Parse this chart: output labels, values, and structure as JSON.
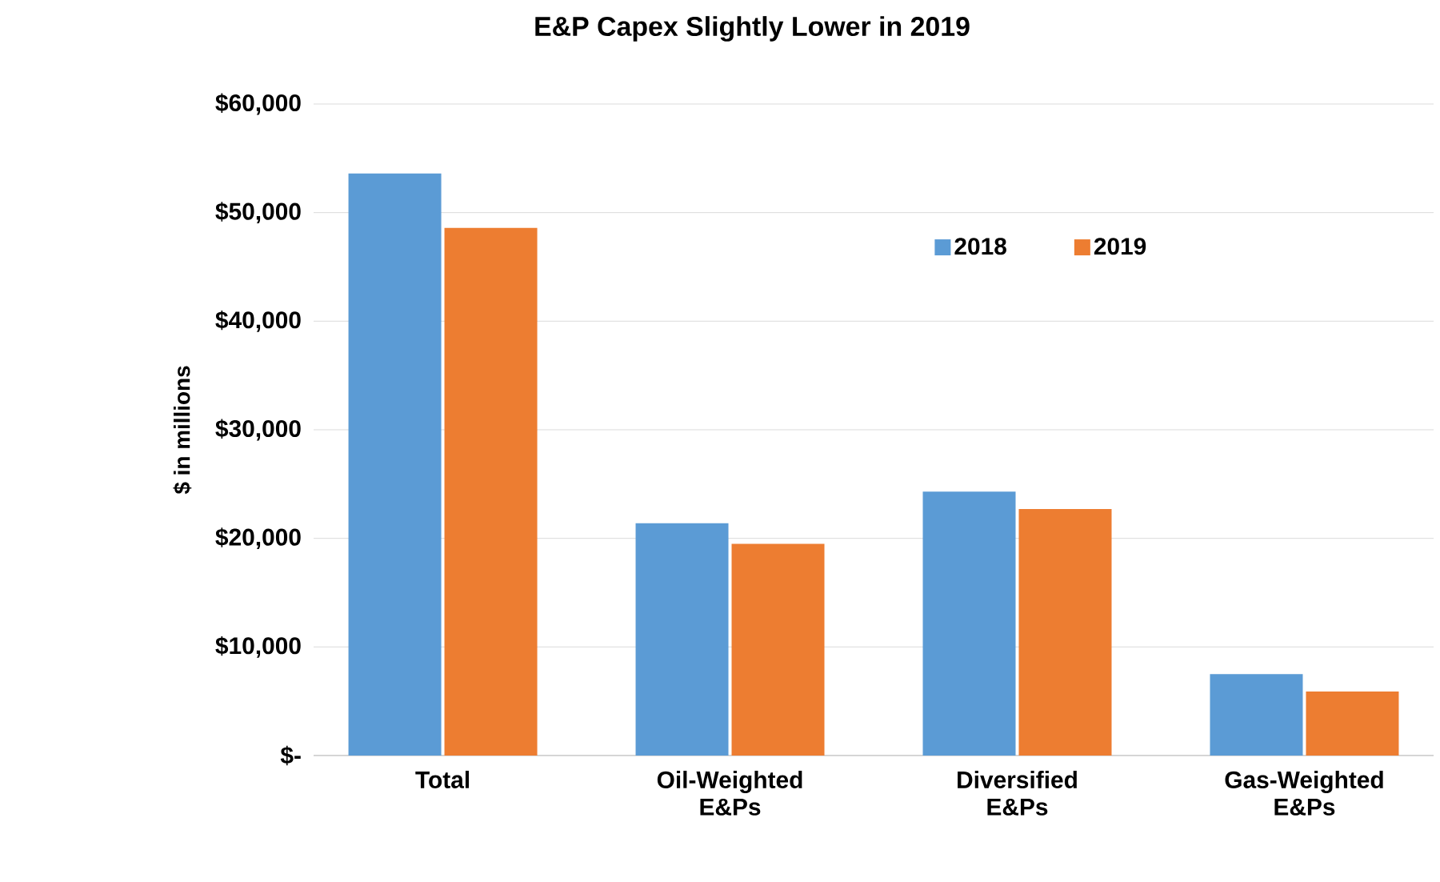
{
  "chart_data": {
    "type": "bar",
    "title": "E&P Capex Slightly Lower in 2019",
    "ylabel": "$ in millions",
    "categories": [
      "Total",
      "Oil-Weighted E&Ps",
      "Diversified E&Ps",
      "Gas-Weighted E&Ps"
    ],
    "series": [
      {
        "name": "2018",
        "color": "#5b9bd5",
        "values": [
          53600,
          21400,
          24300,
          7500
        ]
      },
      {
        "name": "2019",
        "color": "#ed7d31",
        "values": [
          48600,
          19500,
          22700,
          5900
        ]
      }
    ],
    "ylim": [
      0,
      60000
    ],
    "yticks": [
      {
        "value": 0,
        "label": "$-"
      },
      {
        "value": 10000,
        "label": "$10,000"
      },
      {
        "value": 20000,
        "label": "$20,000"
      },
      {
        "value": 30000,
        "label": "$30,000"
      },
      {
        "value": 40000,
        "label": "$40,000"
      },
      {
        "value": 50000,
        "label": "$50,000"
      },
      {
        "value": 60000,
        "label": "$60,000"
      }
    ],
    "grid": "y",
    "legend": "top right"
  }
}
